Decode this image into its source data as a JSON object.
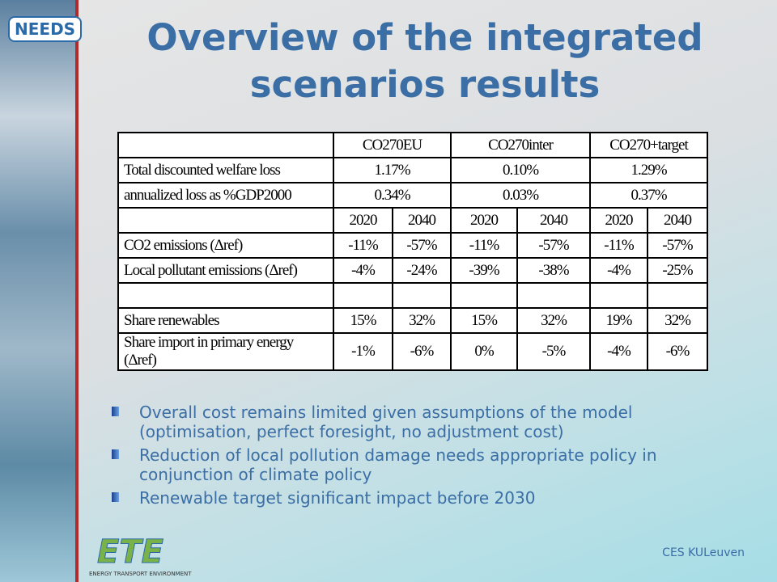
{
  "logo": "NEEDS",
  "title": "Overview of the integrated scenarios results",
  "table": {
    "scenarios": [
      "CO270EU",
      "CO270inter",
      "CO270+target"
    ],
    "rows": [
      {
        "label": "Total discounted welfare loss",
        "values": [
          "1.17%",
          "0.10%",
          "1.29%"
        ]
      },
      {
        "label": "annualized loss as %GDP2000",
        "values": [
          "0.34%",
          "0.03%",
          "0.37%"
        ]
      },
      {
        "years": [
          "2020",
          "2040",
          "2020",
          "2040",
          "2020",
          "2040"
        ]
      },
      {
        "label": "CO2 emissions (Δref)",
        "values": [
          "-11%",
          "-57%",
          "-11%",
          "-57%",
          "-11%",
          "-57%"
        ]
      },
      {
        "label": "Local pollutant emissions (Δref)",
        "values": [
          "-4%",
          "-24%",
          "-39%",
          "-38%",
          "-4%",
          "-25%"
        ]
      },
      null,
      {
        "label": "Share renewables",
        "values": [
          "15%",
          "32%",
          "15%",
          "32%",
          "19%",
          "32%"
        ]
      },
      {
        "label": "Share import in primary energy (Δref)",
        "values": [
          "-1%",
          "-6%",
          "0%",
          "-5%",
          "-4%",
          "-6%"
        ]
      }
    ]
  },
  "bullets": [
    "Overall cost remains limited given assumptions of the model (optimisation, perfect foresight, no adjustment cost)",
    "Reduction of local pollution damage needs appropriate policy in conjunction of climate policy",
    "Renewable target significant impact before 2030"
  ],
  "footer_logo": {
    "mark": "ETE",
    "tagline": "Energy Transport Environment"
  },
  "footer": "CES KULeuven"
}
